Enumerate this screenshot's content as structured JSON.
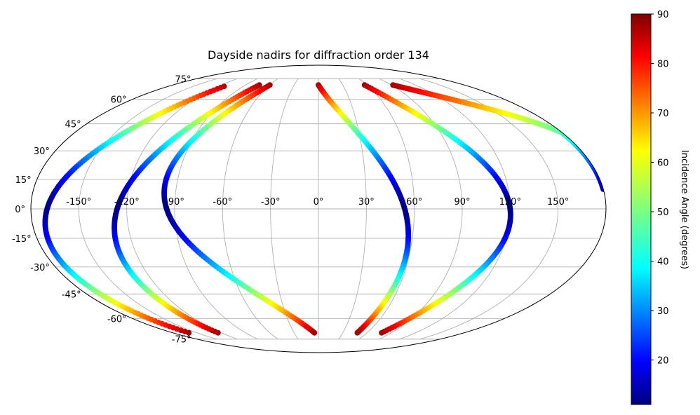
{
  "chart_data": {
    "type": "scatter",
    "projection": "mollweide",
    "title": "Dayside nadirs for diffraction order 134",
    "lon_ticks": [
      "-150°",
      "-120°",
      "-90°",
      "-60°",
      "-30°",
      "0°",
      "30°",
      "60°",
      "90°",
      "120°",
      "150°"
    ],
    "lat_ticks": [
      "75°",
      "60°",
      "45°",
      "30°",
      "15°",
      "0°",
      "-15°",
      "-30°",
      "-45°",
      "-60°",
      "-75°"
    ],
    "lon_tick_values": [
      -150,
      -120,
      -90,
      -60,
      -30,
      0,
      30,
      60,
      90,
      120,
      150
    ],
    "lat_tick_values": [
      75,
      60,
      45,
      30,
      15,
      0,
      -15,
      -30,
      -45,
      -60,
      -75
    ],
    "grid": true,
    "colormap": "jet",
    "colorbar": {
      "label": "Incidence Angle (degrees)",
      "ticks": [
        "20",
        "30",
        "40",
        "50",
        "60",
        "70",
        "80",
        "90"
      ],
      "tick_values": [
        20,
        30,
        40,
        50,
        60,
        70,
        80,
        90
      ],
      "min": 11,
      "max": 90,
      "position": "right"
    },
    "tracks": [
      {
        "lon_north": -113,
        "lat_north": 69,
        "lon_south": -160,
        "lat_south": -70,
        "mid_lon": -170,
        "eq_sign": 1
      },
      {
        "lon_north": -73,
        "lat_north": 70,
        "lon_south": -124,
        "lat_south": -70,
        "mid_lon": -126,
        "eq_sign": 1
      },
      {
        "lon_north": -60,
        "lat_north": 70,
        "lon_south": -5,
        "lat_south": -70,
        "mid_lon": -95,
        "eq_sign": -1
      },
      {
        "lon_north": 0,
        "lat_north": 70,
        "lon_south": 48,
        "lat_south": -70,
        "mid_lon": 54,
        "eq_sign": -1
      },
      {
        "lon_north": 57,
        "lat_north": 70,
        "lon_south": 78,
        "lat_south": -70,
        "mid_lon": 120,
        "eq_sign": -1
      },
      {
        "lon_north": 92,
        "lat_north": 70,
        "lon_south": 180,
        "lat_south": 10,
        "mid_lon": 180,
        "eq_sign": -1
      }
    ]
  }
}
